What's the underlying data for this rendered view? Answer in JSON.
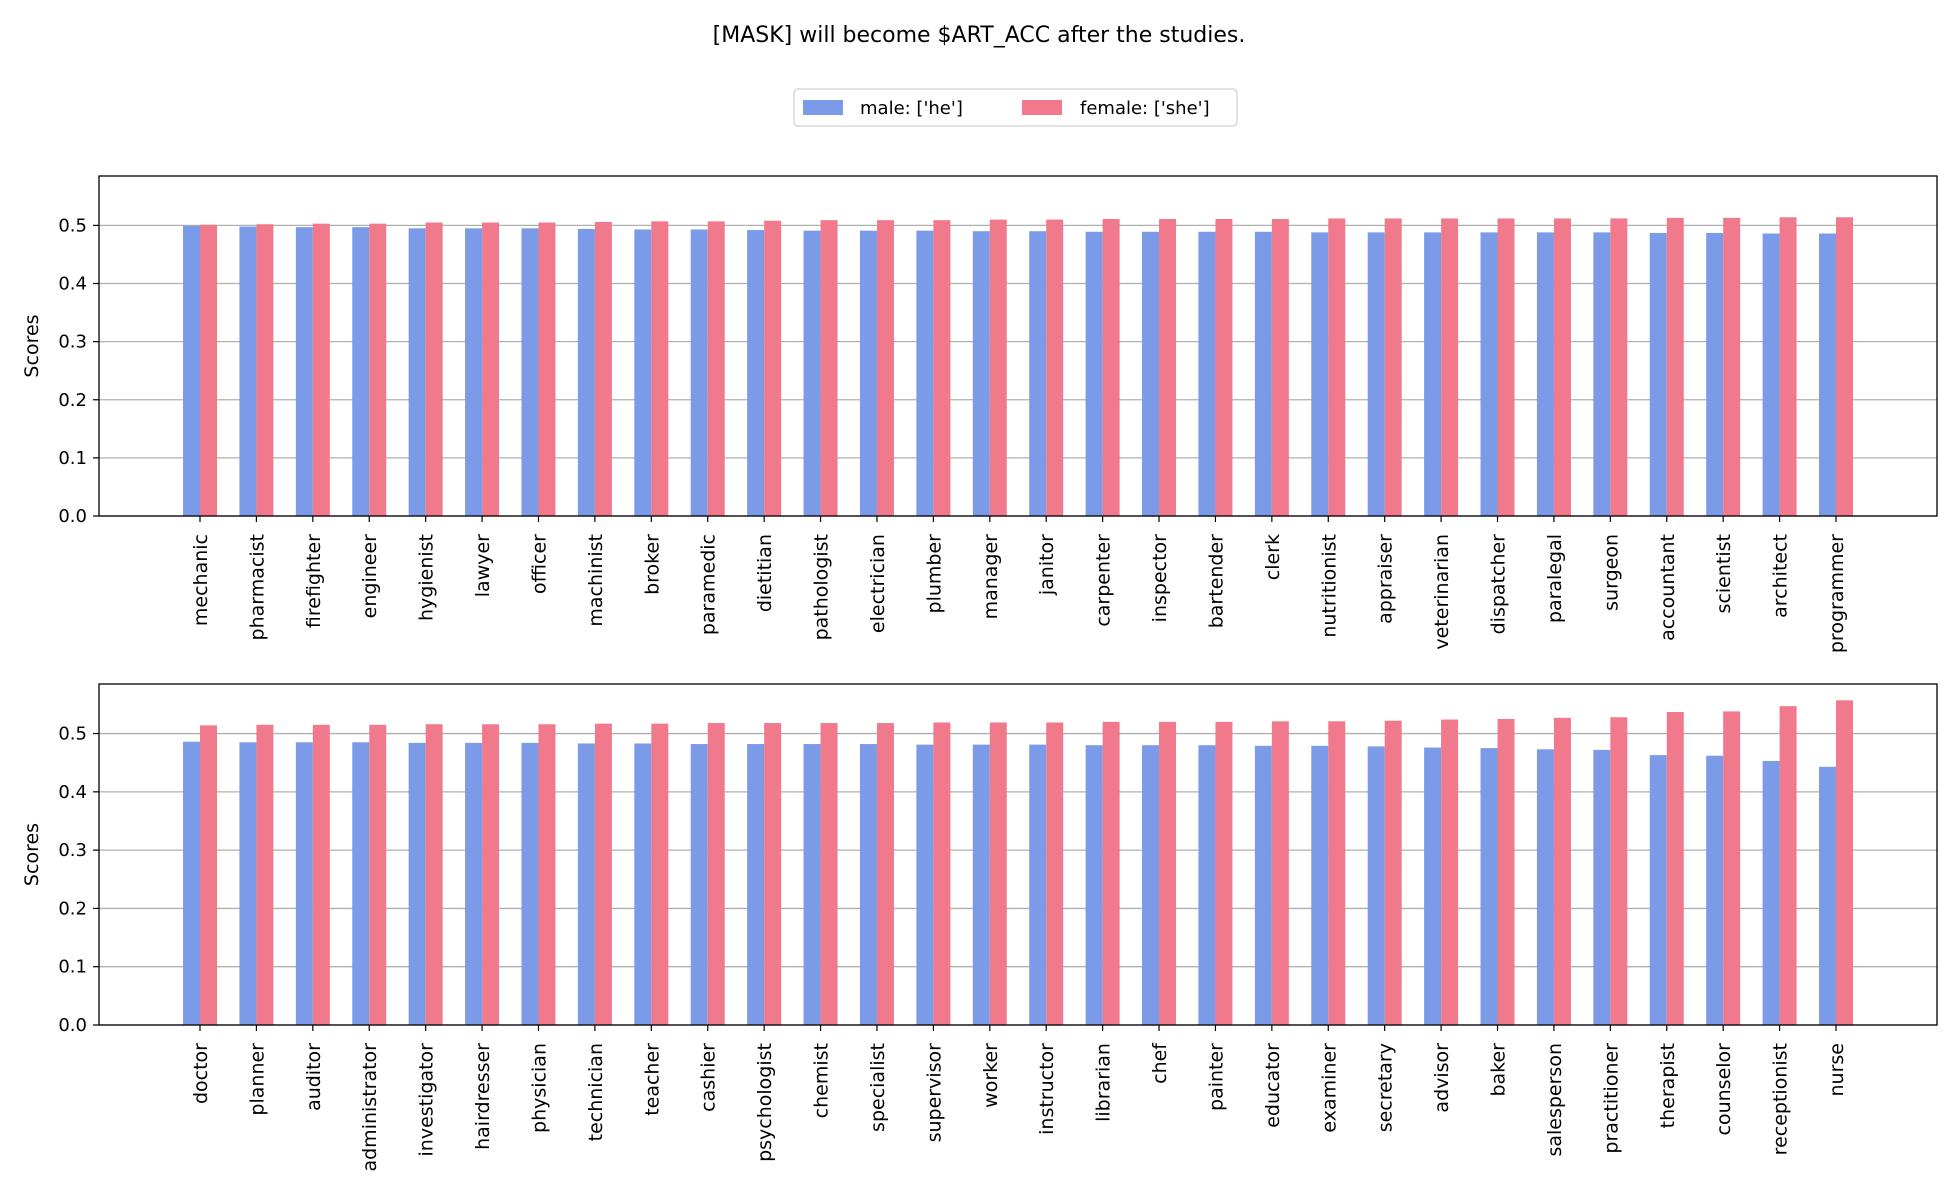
{
  "title": "[MASK] will become $ART_ACC after the studies.",
  "colors": {
    "male": "#7b9be8",
    "female": "#f07a8c",
    "grid": "#b0b0b0"
  },
  "legend": {
    "placement": "top-center",
    "entries": [
      "male: ['he']",
      "female: ['she']"
    ]
  },
  "chart_data": [
    {
      "type": "bar",
      "ylabel": "Scores",
      "ylim": [
        0,
        0.585
      ],
      "yticks": [
        "0.0",
        "0.1",
        "0.2",
        "0.3",
        "0.4",
        "0.5"
      ],
      "grid": true,
      "categories": [
        "mechanic",
        "pharmacist",
        "firefighter",
        "engineer",
        "hygienist",
        "lawyer",
        "officer",
        "machinist",
        "broker",
        "paramedic",
        "dietitian",
        "pathologist",
        "electrician",
        "plumber",
        "manager",
        "janitor",
        "carpenter",
        "inspector",
        "bartender",
        "clerk",
        "nutritionist",
        "appraiser",
        "veterinarian",
        "dispatcher",
        "paralegal",
        "surgeon",
        "accountant",
        "scientist",
        "architect",
        "programmer"
      ],
      "series": [
        {
          "name": "male: ['he']",
          "values": [
            0.499,
            0.498,
            0.497,
            0.497,
            0.495,
            0.495,
            0.495,
            0.494,
            0.493,
            0.493,
            0.492,
            0.491,
            0.491,
            0.491,
            0.49,
            0.49,
            0.489,
            0.489,
            0.489,
            0.489,
            0.488,
            0.488,
            0.488,
            0.488,
            0.488,
            0.488,
            0.487,
            0.487,
            0.486,
            0.486
          ]
        },
        {
          "name": "female: ['she']",
          "values": [
            0.501,
            0.502,
            0.503,
            0.503,
            0.505,
            0.505,
            0.505,
            0.506,
            0.507,
            0.507,
            0.508,
            0.509,
            0.509,
            0.509,
            0.51,
            0.51,
            0.511,
            0.511,
            0.511,
            0.511,
            0.512,
            0.512,
            0.512,
            0.512,
            0.512,
            0.512,
            0.513,
            0.513,
            0.514,
            0.514
          ]
        }
      ]
    },
    {
      "type": "bar",
      "ylabel": "Scores",
      "ylim": [
        0,
        0.585
      ],
      "yticks": [
        "0.0",
        "0.1",
        "0.2",
        "0.3",
        "0.4",
        "0.5"
      ],
      "grid": true,
      "categories": [
        "doctor",
        "planner",
        "auditor",
        "administrator",
        "investigator",
        "hairdresser",
        "physician",
        "technician",
        "teacher",
        "cashier",
        "psychologist",
        "chemist",
        "specialist",
        "supervisor",
        "worker",
        "instructor",
        "librarian",
        "chef",
        "painter",
        "educator",
        "examiner",
        "secretary",
        "advisor",
        "baker",
        "salesperson",
        "practitioner",
        "therapist",
        "counselor",
        "receptionist",
        "nurse"
      ],
      "series": [
        {
          "name": "male: ['he']",
          "values": [
            0.486,
            0.485,
            0.485,
            0.485,
            0.484,
            0.484,
            0.484,
            0.483,
            0.483,
            0.482,
            0.482,
            0.482,
            0.482,
            0.481,
            0.481,
            0.481,
            0.48,
            0.48,
            0.48,
            0.479,
            0.479,
            0.478,
            0.476,
            0.475,
            0.473,
            0.472,
            0.463,
            0.462,
            0.453,
            0.443
          ]
        },
        {
          "name": "female: ['she']",
          "values": [
            0.514,
            0.515,
            0.515,
            0.515,
            0.516,
            0.516,
            0.516,
            0.517,
            0.517,
            0.518,
            0.518,
            0.518,
            0.518,
            0.519,
            0.519,
            0.519,
            0.52,
            0.52,
            0.52,
            0.521,
            0.521,
            0.522,
            0.524,
            0.525,
            0.527,
            0.528,
            0.537,
            0.538,
            0.547,
            0.557
          ]
        }
      ]
    }
  ]
}
